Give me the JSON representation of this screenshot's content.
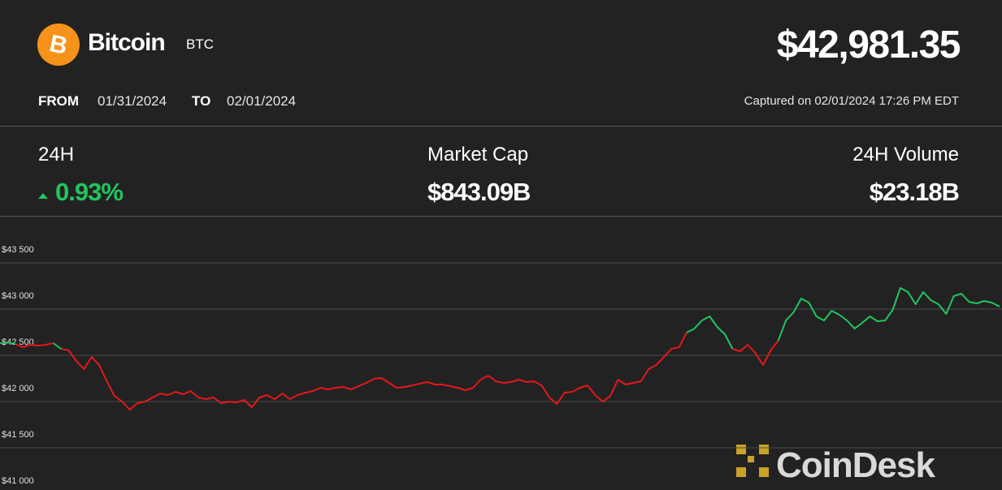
{
  "header": {
    "name": "Bitcoin",
    "symbol": "BTC",
    "price": "$42,981.35",
    "from_label": "FROM",
    "from_date": "01/31/2024",
    "to_label": "TO",
    "to_date": "02/01/2024",
    "captured": "Captured on 02/01/2024 17:26 PM EDT"
  },
  "stats": [
    {
      "label": "24H",
      "value": "0.93%"
    },
    {
      "label": "Market Cap",
      "value": "$843.09B"
    },
    {
      "label": "24H Volume",
      "value": "$23.18B"
    }
  ],
  "watermark": "CoinDesk",
  "chart_data": {
    "type": "line",
    "up_color": "#22c55e",
    "down_color": "#e5181b",
    "grid": true,
    "ylim": [
      41000,
      44000
    ],
    "yticks": [
      {
        "value": 41000,
        "label": "$41 000"
      },
      {
        "value": 41500,
        "label": "$41 500"
      },
      {
        "value": 42000,
        "label": "$42 000"
      },
      {
        "value": 42500,
        "label": "$42 500"
      },
      {
        "value": 43000,
        "label": "$43 000"
      },
      {
        "value": 43500,
        "label": "$43 500"
      }
    ],
    "series": [
      {
        "name": "BTC",
        "values": [
          42632,
          42640,
          42623,
          42588,
          42614,
          42605,
          42614,
          42632,
          42570,
          42553,
          42439,
          42351,
          42482,
          42395,
          42219,
          42061,
          42000,
          41912,
          41982,
          42000,
          42044,
          42088,
          42070,
          42105,
          42079,
          42114,
          42044,
          42026,
          42044,
          41982,
          42000,
          41991,
          42018,
          41939,
          42044,
          42070,
          42026,
          42088,
          42026,
          42070,
          42096,
          42114,
          42149,
          42132,
          42149,
          42158,
          42132,
          42167,
          42202,
          42246,
          42254,
          42202,
          42149,
          42158,
          42175,
          42193,
          42211,
          42184,
          42184,
          42167,
          42149,
          42123,
          42149,
          42237,
          42281,
          42219,
          42202,
          42211,
          42237,
          42211,
          42219,
          42175,
          42044,
          41974,
          42096,
          42105,
          42149,
          42175,
          42070,
          42000,
          42061,
          42237,
          42184,
          42202,
          42219,
          42351,
          42395,
          42482,
          42570,
          42588,
          42746,
          42789,
          42877,
          42921,
          42807,
          42728,
          42570,
          42544,
          42614,
          42526,
          42395,
          42553,
          42658,
          42877,
          42965,
          43114,
          43070,
          42921,
          42877,
          42982,
          42939,
          42877,
          42789,
          42851,
          42921,
          42868,
          42877,
          42991,
          43228,
          43184,
          43053,
          43184,
          43096,
          43053,
          42947,
          43140,
          43167,
          43079,
          43061,
          43088,
          43070,
          43026
        ]
      }
    ]
  }
}
